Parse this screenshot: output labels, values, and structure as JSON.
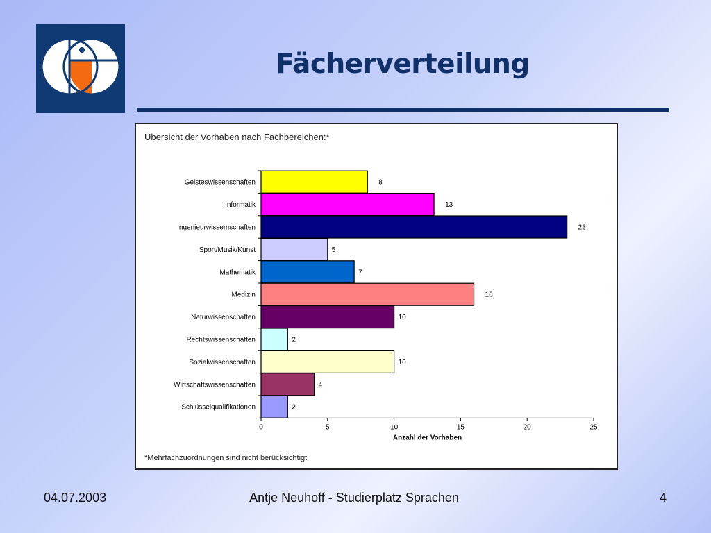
{
  "slide": {
    "title": "Fächerverteilung",
    "footer_date": "04.07.2003",
    "footer_center": "Antje Neuhoff - Studierplatz Sprachen",
    "footer_page": "4"
  },
  "colors": {
    "title": "#10306a",
    "logo_bg": "#0f3a74",
    "logo_accent": "#f36a10"
  },
  "chart_data": {
    "type": "bar",
    "orientation": "horizontal",
    "title": "Übersicht der Vorhaben nach Fachbereichen:*",
    "xlabel": "Anzahl der Vorhaben",
    "ylabel": "",
    "xlim": [
      0,
      25
    ],
    "xticks": [
      0,
      5,
      10,
      15,
      20,
      25
    ],
    "grid": false,
    "footnote": "*Mehrfachzuordnungen sind nicht berücksichtigt",
    "categories": [
      "Geisteswissenschaften",
      "Informatik",
      "Ingenieurwissemschaften",
      "Sport/Musik/Kunst",
      "Mathematik",
      "Medizin",
      "Naturwissenschaften",
      "Rechtswissenschaften",
      "Sozialwissenschaften",
      "Wirtschaftswissenschaften",
      "Schlüsselqualifikationen"
    ],
    "values": [
      8,
      13,
      23,
      5,
      7,
      16,
      10,
      2,
      10,
      4,
      2
    ],
    "bar_colors": [
      "#ffff00",
      "#ff00ff",
      "#000080",
      "#ccccff",
      "#0066cc",
      "#ff8080",
      "#660066",
      "#ccffff",
      "#ffffcc",
      "#993366",
      "#9999ff"
    ]
  }
}
